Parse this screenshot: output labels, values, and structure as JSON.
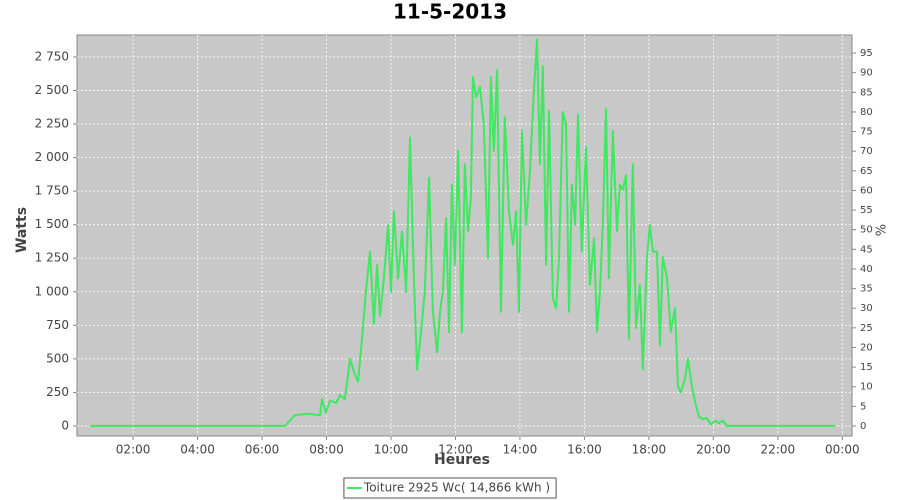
{
  "chart_data": {
    "type": "line",
    "title": "11-5-2013",
    "x_label": "Heures",
    "y_label": "Watts",
    "y2_label": "%",
    "grid": true,
    "legend": "bottom",
    "xlim": [
      0.26,
      24.3
    ],
    "xticks": [
      {
        "value": 2,
        "label": "02:00"
      },
      {
        "value": 4,
        "label": "04:00"
      },
      {
        "value": 6,
        "label": "06:00"
      },
      {
        "value": 8,
        "label": "08:00"
      },
      {
        "value": 10,
        "label": "10:00"
      },
      {
        "value": 12,
        "label": "12:00"
      },
      {
        "value": 14,
        "label": "14:00"
      },
      {
        "value": 16,
        "label": "16:00"
      },
      {
        "value": 18,
        "label": "18:00"
      },
      {
        "value": 20,
        "label": "20:00"
      },
      {
        "value": 22,
        "label": "22:00"
      },
      {
        "value": 24,
        "label": "00:00"
      }
    ],
    "ylim": [
      -75,
      2914
    ],
    "yticks": [
      0,
      250,
      500,
      750,
      {
        "value": 1000,
        "label": "1 000"
      },
      {
        "value": 1250,
        "label": "1 250"
      },
      {
        "value": 1500,
        "label": "1 500"
      },
      {
        "value": 1750,
        "label": "1 750"
      },
      {
        "value": 2000,
        "label": "2 000"
      },
      {
        "value": 2250,
        "label": "2 250"
      },
      {
        "value": 2500,
        "label": "2 500"
      },
      {
        "value": 2750,
        "label": "2 750"
      }
    ],
    "y2lim": [
      -2.55,
      99.6
    ],
    "y2ticks": [
      0,
      5,
      10,
      15,
      20,
      25,
      30,
      35,
      40,
      45,
      50,
      55,
      60,
      65,
      70,
      75,
      80,
      85,
      90,
      95
    ],
    "x": [
      0.67,
      5.63,
      6.71,
      7.02,
      7.18,
      7.49,
      7.8,
      7.86,
      7.98,
      8.11,
      8.29,
      8.42,
      8.57,
      8.73,
      8.88,
      8.98,
      9.1,
      9.22,
      9.35,
      9.47,
      9.57,
      9.66,
      9.78,
      9.91,
      10.0,
      10.09,
      10.22,
      10.34,
      10.47,
      10.59,
      10.71,
      10.81,
      10.93,
      11.05,
      11.18,
      11.3,
      11.43,
      11.52,
      11.61,
      11.71,
      11.8,
      11.89,
      11.98,
      12.08,
      12.2,
      12.29,
      12.39,
      12.48,
      12.54,
      12.64,
      12.76,
      12.88,
      13.01,
      13.1,
      13.19,
      13.29,
      13.41,
      13.53,
      13.66,
      13.78,
      13.88,
      13.97,
      14.06,
      14.19,
      14.31,
      14.43,
      14.53,
      14.62,
      14.71,
      14.81,
      14.9,
      15.02,
      15.12,
      15.21,
      15.33,
      15.43,
      15.52,
      15.61,
      15.71,
      15.8,
      15.92,
      16.05,
      16.17,
      16.3,
      16.39,
      16.48,
      16.57,
      16.67,
      16.76,
      16.88,
      17.01,
      17.1,
      17.19,
      17.29,
      17.38,
      17.5,
      17.6,
      17.72,
      17.81,
      17.94,
      18.03,
      18.12,
      18.25,
      18.34,
      18.43,
      18.56,
      18.68,
      18.81,
      18.9,
      18.99,
      19.12,
      19.21,
      19.33,
      19.43,
      19.55,
      19.67,
      19.8,
      19.92,
      20.05,
      20.17,
      20.3,
      20.42,
      23.77
    ],
    "series": [
      {
        "name": "Toiture 2925 Wc( 14,866 kWh )",
        "color": "#3ee860",
        "values": [
          0,
          0,
          0,
          80,
          85,
          90,
          80,
          200,
          100,
          190,
          170,
          230,
          200,
          500,
          380,
          330,
          650,
          1000,
          1300,
          760,
          1200,
          820,
          1100,
          1500,
          1000,
          1600,
          1100,
          1450,
          1000,
          2150,
          1100,
          420,
          700,
          1000,
          1850,
          850,
          550,
          850,
          1000,
          1550,
          700,
          1800,
          1200,
          2050,
          700,
          1950,
          1450,
          1700,
          2600,
          2450,
          2530,
          2250,
          1250,
          2600,
          2050,
          2650,
          850,
          2300,
          1600,
          1350,
          1600,
          850,
          2200,
          1500,
          1900,
          2480,
          2880,
          1950,
          2680,
          1200,
          2350,
          950,
          880,
          1250,
          2340,
          2250,
          850,
          1800,
          1500,
          2320,
          1300,
          2080,
          1050,
          1400,
          700,
          1000,
          1500,
          2360,
          1100,
          2200,
          1450,
          1800,
          1760,
          1870,
          650,
          1950,
          730,
          1050,
          420,
          1250,
          1500,
          1300,
          1300,
          600,
          1260,
          1100,
          700,
          880,
          300,
          250,
          350,
          500,
          300,
          180,
          70,
          50,
          60,
          10,
          40,
          20,
          40,
          0,
          0
        ]
      }
    ]
  }
}
